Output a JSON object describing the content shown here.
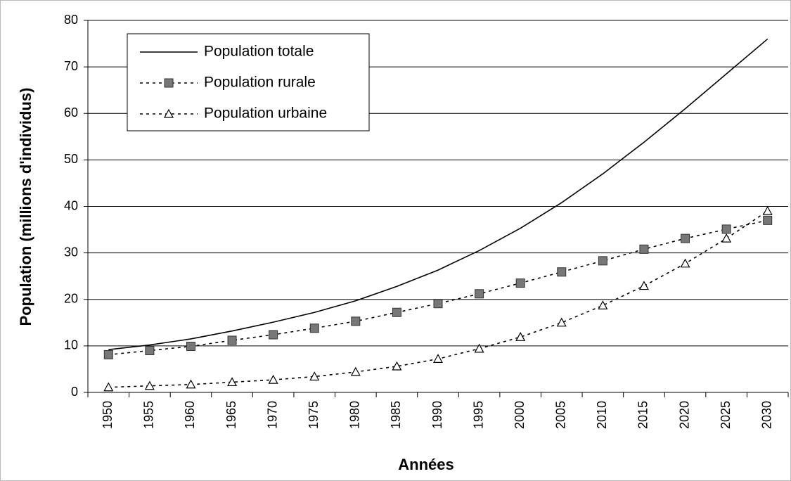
{
  "chart_data": {
    "type": "line",
    "x_label": "Années",
    "y_label": "Population (millions d'individus)",
    "categories": [
      "1950",
      "1955",
      "1960",
      "1965",
      "1970",
      "1975",
      "1980",
      "1985",
      "1990",
      "1995",
      "2000",
      "2005",
      "2010",
      "2015",
      "2020",
      "2025",
      "2030"
    ],
    "series": [
      {
        "name": "Population totale",
        "color": "#000000",
        "dash": "solid",
        "marker": "none",
        "values": [
          9.2,
          10.2,
          11.5,
          13.2,
          15.1,
          17.2,
          19.7,
          22.8,
          26.3,
          30.5,
          35.3,
          40.8,
          47.0,
          53.8,
          61.0,
          68.5,
          76.0
        ]
      },
      {
        "name": "Population rurale",
        "color": "#000000",
        "dash": "dotted",
        "marker": "square",
        "values": [
          8.1,
          9.0,
          9.9,
          11.2,
          12.4,
          13.8,
          15.3,
          17.2,
          19.1,
          21.2,
          23.5,
          25.9,
          28.3,
          30.8,
          33.1,
          35.1,
          37.0
        ]
      },
      {
        "name": "Population urbaine",
        "color": "#000000",
        "dash": "dotted",
        "marker": "triangle",
        "values": [
          1.1,
          1.4,
          1.7,
          2.2,
          2.7,
          3.4,
          4.4,
          5.6,
          7.2,
          9.4,
          11.9,
          15.0,
          18.7,
          22.9,
          27.7,
          33.1,
          39.0
        ]
      }
    ],
    "ylim": [
      0,
      80
    ],
    "yticks": [
      0,
      10,
      20,
      30,
      40,
      50,
      60,
      70,
      80
    ],
    "grid": true,
    "legend": "upper-left"
  }
}
